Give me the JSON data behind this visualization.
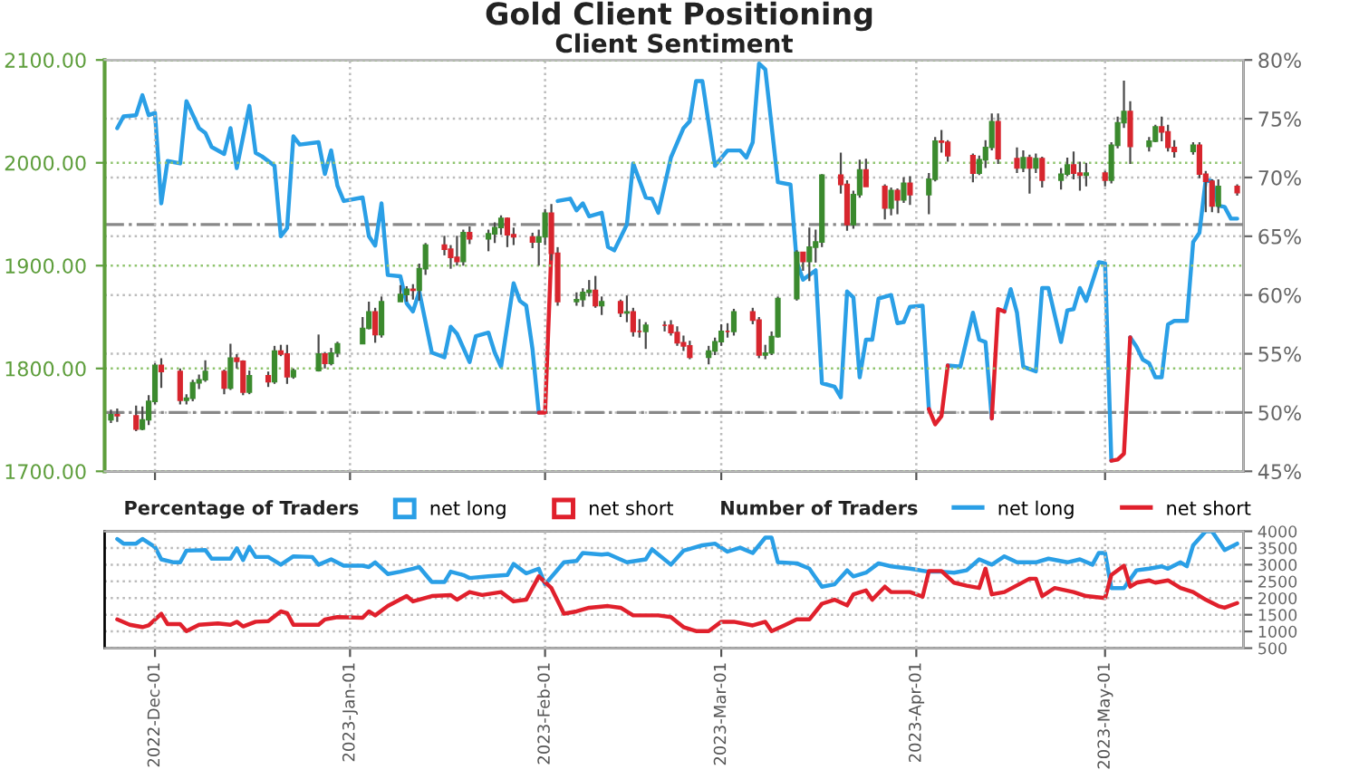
{
  "chart_data": [
    {
      "type": "candlestick",
      "title": "Gold Client Positioning",
      "subtitle": "Client Sentiment",
      "legend_title": "Percentage of Traders",
      "legend": "bottom left",
      "grid": true,
      "tick_labels": "y",
      "xlim": [
        "2022-11-23",
        "2023-05-23"
      ],
      "xticks": [
        {
          "value": "2022-12-01",
          "label": null
        },
        {
          "value": "2023-01-01",
          "label": null
        },
        {
          "value": "2023-02-01",
          "label": null
        },
        {
          "value": "2023-03-01",
          "label": null
        },
        {
          "value": "2023-04-01",
          "label": null
        },
        {
          "value": "2023-05-01",
          "label": null
        }
      ],
      "ylim": [
        1700,
        2100
      ],
      "yticks": [
        {
          "value": 1700,
          "label": "1700.00"
        },
        {
          "value": 1800,
          "label": "1800.00"
        },
        {
          "value": 1900,
          "label": "1900.00"
        },
        {
          "value": 2000,
          "label": "2000.00"
        },
        {
          "value": 2100,
          "label": "2100.00"
        }
      ],
      "y2lim": [
        45,
        80
      ],
      "y2ticks": [
        {
          "value": 45,
          "label": "45%"
        },
        {
          "value": 50,
          "label": "50%"
        },
        {
          "value": 55,
          "label": "55%"
        },
        {
          "value": 60,
          "label": "60%"
        },
        {
          "value": 65,
          "label": "65%"
        },
        {
          "value": 70,
          "label": "70%"
        },
        {
          "value": 75,
          "label": "75%"
        },
        {
          "value": 80,
          "label": "80%"
        }
      ],
      "ref_lines": [
        {
          "axis": "y2",
          "value": 50,
          "label": null,
          "color": "#888888",
          "line_style": "dashed"
        },
        {
          "axis": "y2",
          "value": 66,
          "label": null,
          "color": "#888888",
          "line_style": "dashed"
        }
      ],
      "x": [
        "2022-11-24",
        "2022-11-25",
        "2022-11-28",
        "2022-11-29",
        "2022-11-30",
        "2022-12-01",
        "2022-12-02",
        "2022-12-05",
        "2022-12-06",
        "2022-12-07",
        "2022-12-08",
        "2022-12-09",
        "2022-12-12",
        "2022-12-13",
        "2022-12-14",
        "2022-12-15",
        "2022-12-16",
        "2022-12-19",
        "2022-12-20",
        "2022-12-21",
        "2022-12-22",
        "2022-12-23",
        "2022-12-27",
        "2022-12-28",
        "2022-12-29",
        "2022-12-30",
        "2023-01-03",
        "2023-01-04",
        "2023-01-05",
        "2023-01-06",
        "2023-01-09",
        "2023-01-10",
        "2023-01-11",
        "2023-01-12",
        "2023-01-13",
        "2023-01-16",
        "2023-01-17",
        "2023-01-18",
        "2023-01-19",
        "2023-01-20",
        "2023-01-23",
        "2023-01-24",
        "2023-01-25",
        "2023-01-26",
        "2023-01-27",
        "2023-01-30",
        "2023-01-31",
        "2023-02-01",
        "2023-02-02",
        "2023-02-03",
        "2023-02-06",
        "2023-02-07",
        "2023-02-08",
        "2023-02-09",
        "2023-02-10",
        "2023-02-13",
        "2023-02-14",
        "2023-02-15",
        "2023-02-16",
        "2023-02-17",
        "2023-02-20",
        "2023-02-21",
        "2023-02-22",
        "2023-02-23",
        "2023-02-24",
        "2023-02-27",
        "2023-02-28",
        "2023-03-01",
        "2023-03-02",
        "2023-03-03",
        "2023-03-06",
        "2023-03-07",
        "2023-03-08",
        "2023-03-09",
        "2023-03-10",
        "2023-03-13",
        "2023-03-14",
        "2023-03-15",
        "2023-03-16",
        "2023-03-17",
        "2023-03-20",
        "2023-03-21",
        "2023-03-22",
        "2023-03-23",
        "2023-03-24",
        "2023-03-27",
        "2023-03-28",
        "2023-03-29",
        "2023-03-30",
        "2023-03-31",
        "2023-04-03",
        "2023-04-04",
        "2023-04-05",
        "2023-04-06",
        "2023-04-10",
        "2023-04-11",
        "2023-04-12",
        "2023-04-13",
        "2023-04-14",
        "2023-04-17",
        "2023-04-18",
        "2023-04-19",
        "2023-04-20",
        "2023-04-21",
        "2023-04-24",
        "2023-04-25",
        "2023-04-26",
        "2023-04-27",
        "2023-04-28",
        "2023-05-01",
        "2023-05-02",
        "2023-05-03",
        "2023-05-04",
        "2023-05-05",
        "2023-05-08",
        "2023-05-09",
        "2023-05-10",
        "2023-05-11",
        "2023-05-12",
        "2023-05-15",
        "2023-05-16",
        "2023-05-17",
        "2023-05-18",
        "2023-05-19",
        "2023-05-22"
      ],
      "ohlc": [
        [
          1750,
          1760,
          1747,
          1755
        ],
        [
          1755,
          1761,
          1748,
          1754
        ],
        [
          1754,
          1764,
          1739,
          1741
        ],
        [
          1741,
          1763,
          1740,
          1750
        ],
        [
          1750,
          1774,
          1745,
          1768
        ],
        [
          1768,
          1805,
          1765,
          1803
        ],
        [
          1803,
          1810,
          1781,
          1797
        ],
        [
          1797,
          1800,
          1765,
          1769
        ],
        [
          1769,
          1775,
          1765,
          1771
        ],
        [
          1771,
          1789,
          1768,
          1786
        ],
        [
          1786,
          1794,
          1780,
          1789
        ],
        [
          1789,
          1808,
          1787,
          1797
        ],
        [
          1797,
          1799,
          1775,
          1781
        ],
        [
          1781,
          1824,
          1779,
          1810
        ],
        [
          1810,
          1814,
          1800,
          1807
        ],
        [
          1807,
          1808,
          1774,
          1777
        ],
        [
          1777,
          1798,
          1775,
          1793
        ],
        [
          1793,
          1797,
          1782,
          1787
        ],
        [
          1787,
          1822,
          1785,
          1817
        ],
        [
          1817,
          1823,
          1812,
          1814
        ],
        [
          1814,
          1823,
          1785,
          1792
        ],
        [
          1792,
          1800,
          1790,
          1798
        ],
        [
          1798,
          1833,
          1797,
          1814
        ],
        [
          1814,
          1816,
          1800,
          1805
        ],
        [
          1805,
          1820,
          1803,
          1815
        ],
        [
          1815,
          1826,
          1811,
          1824
        ],
        [
          1824,
          1850,
          1824,
          1839
        ],
        [
          1839,
          1865,
          1838,
          1855
        ],
        [
          1855,
          1859,
          1825,
          1833
        ],
        [
          1833,
          1870,
          1830,
          1865
        ],
        [
          1865,
          1881,
          1865,
          1872
        ],
        [
          1872,
          1880,
          1865,
          1877
        ],
        [
          1877,
          1882,
          1867,
          1876
        ],
        [
          1876,
          1902,
          1866,
          1897
        ],
        [
          1897,
          1922,
          1891,
          1920
        ],
        [
          1920,
          1929,
          1910,
          1916
        ],
        [
          1916,
          1920,
          1897,
          1908
        ],
        [
          1908,
          1929,
          1900,
          1904
        ],
        [
          1904,
          1935,
          1900,
          1932
        ],
        [
          1932,
          1938,
          1921,
          1926
        ],
        [
          1926,
          1935,
          1914,
          1931
        ],
        [
          1931,
          1942,
          1922,
          1937
        ],
        [
          1937,
          1949,
          1930,
          1946
        ],
        [
          1946,
          1947,
          1918,
          1930
        ],
        [
          1930,
          1937,
          1920,
          1928
        ],
        [
          1928,
          1932,
          1917,
          1923
        ],
        [
          1923,
          1935,
          1900,
          1928
        ],
        [
          1928,
          1955,
          1920,
          1951
        ],
        [
          1951,
          1960,
          1905,
          1912
        ],
        [
          1912,
          1918,
          1861,
          1865
        ],
        [
          1865,
          1874,
          1861,
          1867
        ],
        [
          1867,
          1878,
          1860,
          1874
        ],
        [
          1874,
          1886,
          1870,
          1876
        ],
        [
          1876,
          1890,
          1859,
          1861
        ],
        [
          1861,
          1870,
          1852,
          1865
        ],
        [
          1865,
          1867,
          1850,
          1854
        ],
        [
          1854,
          1871,
          1845,
          1855
        ],
        [
          1855,
          1859,
          1831,
          1836
        ],
        [
          1836,
          1848,
          1830,
          1836
        ],
        [
          1836,
          1845,
          1819,
          1842
        ],
        [
          1842,
          1846,
          1836,
          1842
        ],
        [
          1842,
          1847,
          1832,
          1835
        ],
        [
          1835,
          1841,
          1822,
          1825
        ],
        [
          1825,
          1832,
          1817,
          1822
        ],
        [
          1822,
          1827,
          1809,
          1811
        ],
        [
          1811,
          1822,
          1804,
          1817
        ],
        [
          1817,
          1830,
          1813,
          1826
        ],
        [
          1826,
          1843,
          1822,
          1836
        ],
        [
          1836,
          1844,
          1830,
          1836
        ],
        [
          1836,
          1858,
          1832,
          1855
        ],
        [
          1855,
          1859,
          1843,
          1847
        ],
        [
          1847,
          1850,
          1810,
          1813
        ],
        [
          1813,
          1823,
          1809,
          1815
        ],
        [
          1815,
          1836,
          1813,
          1831
        ],
        [
          1831,
          1870,
          1830,
          1868
        ],
        [
          1868,
          1915,
          1866,
          1913
        ],
        [
          1913,
          1913,
          1895,
          1904
        ],
        [
          1904,
          1937,
          1885,
          1918
        ],
        [
          1918,
          1935,
          1903,
          1923
        ],
        [
          1923,
          1989,
          1918,
          1988
        ],
        [
          1988,
          2010,
          1970,
          1979
        ],
        [
          1979,
          1983,
          1934,
          1940
        ],
        [
          1940,
          1973,
          1936,
          1969
        ],
        [
          1969,
          2003,
          1966,
          1993
        ],
        [
          1993,
          2004,
          1977,
          1977
        ],
        [
          1977,
          1979,
          1945,
          1956
        ],
        [
          1956,
          1976,
          1949,
          1973
        ],
        [
          1973,
          1975,
          1950,
          1964
        ],
        [
          1964,
          1986,
          1961,
          1980
        ],
        [
          1980,
          1987,
          1959,
          1969
        ],
        [
          1969,
          1990,
          1950,
          1984
        ],
        [
          1984,
          2025,
          1982,
          2021
        ],
        [
          2021,
          2032,
          2010,
          2020
        ],
        [
          2020,
          2022,
          2001,
          2007
        ],
        [
          2007,
          2009,
          1981,
          1990
        ],
        [
          1990,
          2007,
          1988,
          2003
        ],
        [
          2003,
          2022,
          1995,
          2015
        ],
        [
          2015,
          2048,
          2012,
          2040
        ],
        [
          2040,
          2048,
          1999,
          2004
        ],
        [
          2004,
          2015,
          1990,
          1995
        ],
        [
          1995,
          2012,
          1991,
          2005
        ],
        [
          2005,
          2008,
          1970,
          1995
        ],
        [
          1995,
          2009,
          1990,
          2004
        ],
        [
          2004,
          2006,
          1976,
          1983
        ],
        [
          1983,
          1995,
          1974,
          1989
        ],
        [
          1989,
          2005,
          1987,
          1998
        ],
        [
          1998,
          2011,
          1984,
          1990
        ],
        [
          1990,
          2001,
          1973,
          1988
        ],
        [
          1988,
          2000,
          1977,
          1990
        ],
        [
          1990,
          1992,
          1977,
          1983
        ],
        [
          1983,
          2020,
          1980,
          2017
        ],
        [
          2017,
          2045,
          2014,
          2039
        ],
        [
          2039,
          2080,
          2034,
          2050
        ],
        [
          2050,
          2060,
          1999,
          2016
        ],
        [
          2016,
          2025,
          2011,
          2021
        ],
        [
          2021,
          2037,
          2020,
          2035
        ],
        [
          2035,
          2045,
          2021,
          2030
        ],
        [
          2030,
          2037,
          2011,
          2015
        ],
        [
          2015,
          2022,
          2005,
          2011
        ],
        [
          2011,
          2020,
          2008,
          2017
        ],
        [
          2017,
          2020,
          1985,
          1989
        ],
        [
          1989,
          1992,
          1952,
          1982
        ],
        [
          1982,
          1984,
          1952,
          1958
        ],
        [
          1958,
          1984,
          1951,
          1977
        ],
        [
          1977,
          1979,
          1968,
          1971
        ]
      ],
      "colors": [
        "#3b8a2e",
        "#d7262e",
        "#d7262e",
        "#3b8a2e",
        "#3b8a2e",
        "#3b8a2e",
        "#d7262e",
        "#d7262e",
        "#3b8a2e",
        "#3b8a2e",
        "#3b8a2e",
        "#3b8a2e",
        "#d7262e",
        "#3b8a2e",
        "#d7262e",
        "#d7262e",
        "#3b8a2e",
        "#d7262e",
        "#3b8a2e",
        "#d7262e",
        "#d7262e",
        "#3b8a2e",
        "#3b8a2e",
        "#d7262e",
        "#3b8a2e",
        "#3b8a2e",
        "#3b8a2e",
        "#3b8a2e",
        "#d7262e",
        "#3b8a2e",
        "#3b8a2e",
        "#3b8a2e",
        "#d7262e",
        "#3b8a2e",
        "#3b8a2e",
        "#d7262e",
        "#d7262e",
        "#d7262e",
        "#3b8a2e",
        "#d7262e",
        "#3b8a2e",
        "#3b8a2e",
        "#3b8a2e",
        "#d7262e",
        "#d7262e",
        "#d7262e",
        "#3b8a2e",
        "#3b8a2e",
        "#d7262e",
        "#d7262e",
        "#3b8a2e",
        "#3b8a2e",
        "#3b8a2e",
        "#d7262e",
        "#3b8a2e",
        "#d7262e",
        "#3b8a2e",
        "#d7262e",
        "#d7262e",
        "#3b8a2e",
        "#d7262e",
        "#d7262e",
        "#d7262e",
        "#d7262e",
        "#d7262e",
        "#3b8a2e",
        "#3b8a2e",
        "#3b8a2e",
        "#d7262e",
        "#3b8a2e",
        "#d7262e",
        "#d7262e",
        "#3b8a2e",
        "#3b8a2e",
        "#3b8a2e",
        "#3b8a2e",
        "#d7262e",
        "#3b8a2e",
        "#3b8a2e",
        "#3b8a2e",
        "#d7262e",
        "#d7262e",
        "#3b8a2e",
        "#3b8a2e",
        "#d7262e",
        "#d7262e",
        "#3b8a2e",
        "#d7262e",
        "#3b8a2e",
        "#d7262e",
        "#3b8a2e",
        "#3b8a2e",
        "#d7262e",
        "#d7262e",
        "#d7262e",
        "#3b8a2e",
        "#3b8a2e",
        "#3b8a2e",
        "#d7262e",
        "#d7262e",
        "#3b8a2e",
        "#d7262e",
        "#3b8a2e",
        "#d7262e",
        "#3b8a2e",
        "#3b8a2e",
        "#d7262e",
        "#d7262e",
        "#3b8a2e",
        "#d7262e",
        "#3b8a2e",
        "#3b8a2e",
        "#3b8a2e",
        "#d7262e",
        "#3b8a2e",
        "#3b8a2e",
        "#d7262e",
        "#d7262e",
        "#d7262e",
        "#3b8a2e",
        "#d7262e",
        "#d7262e",
        "#d7262e",
        "#3b8a2e",
        "#d7262e"
      ],
      "series": [
        {
          "name": "net long",
          "color": "#2a9fe6",
          "type": "line",
          "axis": "y2",
          "x": [
            "2022-11-25",
            "2022-11-26",
            "2022-11-28",
            "2022-11-29",
            "2022-11-30",
            "2022-12-01",
            "2022-12-02",
            "2022-12-03",
            "2022-12-05",
            "2022-12-06",
            "2022-12-08",
            "2022-12-09",
            "2022-12-10",
            "2022-12-12",
            "2022-12-13",
            "2022-12-14",
            "2022-12-16",
            "2022-12-17",
            "2022-12-18",
            "2022-12-20",
            "2022-12-21",
            "2022-12-22",
            "2022-12-23",
            "2022-12-24",
            "2022-12-27",
            "2022-12-28",
            "2022-12-29",
            "2022-12-30",
            "2022-12-31",
            "2023-01-03",
            "2023-01-04",
            "2023-01-05",
            "2023-01-06",
            "2023-01-07",
            "2023-01-09",
            "2023-01-10",
            "2023-01-11",
            "2023-01-12",
            "2023-01-14",
            "2023-01-16",
            "2023-01-17",
            "2023-01-18",
            "2023-01-20",
            "2023-01-21",
            "2023-01-23",
            "2023-01-24",
            "2023-01-25",
            "2023-01-27",
            "2023-01-28",
            "2023-01-29",
            "2023-01-30",
            "2023-01-31",
            "2023-02-01",
            "2023-02-03",
            "2023-02-05",
            "2023-02-06",
            "2023-02-07",
            "2023-02-08",
            "2023-02-10",
            "2023-02-11",
            "2023-02-12",
            "2023-02-14",
            "2023-02-15",
            "2023-02-17",
            "2023-02-18",
            "2023-02-19",
            "2023-02-21",
            "2023-02-23",
            "2023-02-24",
            "2023-02-25",
            "2023-02-26",
            "2023-02-28",
            "2023-03-02",
            "2023-03-04",
            "2023-03-05",
            "2023-03-06",
            "2023-03-07",
            "2023-03-08",
            "2023-03-10",
            "2023-03-12",
            "2023-03-13",
            "2023-03-14",
            "2023-03-16",
            "2023-03-17",
            "2023-03-19",
            "2023-03-20",
            "2023-03-21",
            "2023-03-22",
            "2023-03-23",
            "2023-03-24",
            "2023-03-25",
            "2023-03-26",
            "2023-03-28",
            "2023-03-29",
            "2023-03-30",
            "2023-03-31",
            "2023-04-02",
            "2023-04-03",
            "2023-04-04",
            "2023-04-06",
            "2023-04-08",
            "2023-04-10",
            "2023-04-11",
            "2023-04-12",
            "2023-04-13",
            "2023-04-14",
            "2023-04-15",
            "2023-04-16",
            "2023-04-17",
            "2023-04-18",
            "2023-04-20",
            "2023-04-21",
            "2023-04-22",
            "2023-04-24",
            "2023-04-25",
            "2023-04-26",
            "2023-04-27",
            "2023-04-28",
            "2023-04-30",
            "2023-05-01",
            "2023-05-02",
            "2023-05-03",
            "2023-05-05",
            "2023-05-06",
            "2023-05-07",
            "2023-05-08",
            "2023-05-09",
            "2023-05-10",
            "2023-05-11",
            "2023-05-12",
            "2023-05-14",
            "2023-05-15",
            "2023-05-16",
            "2023-05-17",
            "2023-05-18",
            "2023-05-19",
            "2023-05-20",
            "2023-05-21",
            "2023-05-22"
          ],
          "values": [
            74.2,
            75.2,
            75.3,
            77.0,
            75.3,
            75.5,
            67.8,
            71.4,
            71.2,
            76.5,
            74.2,
            73.8,
            72.6,
            72.0,
            74.2,
            70.8,
            76.1,
            72.1,
            71.8,
            71.0,
            65.0,
            65.7,
            73.5,
            72.8,
            73.0,
            70.3,
            72.3,
            69.3,
            68.0,
            68.3,
            65.0,
            64.2,
            67.8,
            61.7,
            61.6,
            59.3,
            58.6,
            60.3,
            55.1,
            54.7,
            57.3,
            56.7,
            54.3,
            56.5,
            56.8,
            55.1,
            53.9,
            61.0,
            59.5,
            59.1,
            55.4,
            50.0,
            null,
            68.0,
            68.2,
            67.2,
            67.8,
            66.7,
            67.0,
            64.1,
            63.8,
            66.0,
            71.2,
            68.3,
            68.2,
            67.0,
            71.7,
            74.2,
            74.8,
            78.2,
            78.2,
            71.0,
            72.3,
            72.3,
            71.7,
            73.0,
            79.7,
            79.2,
            69.6,
            69.4,
            62.8,
            61.3,
            62.1,
            52.5,
            52.2,
            51.3,
            60.3,
            59.8,
            53.0,
            56.2,
            56.2,
            59.7,
            60.0,
            57.6,
            57.7,
            59.0,
            59.1,
            50.3,
            null,
            54.0,
            53.9,
            58.5,
            56.2,
            56.0,
            49.5,
            null,
            58.6,
            60.5,
            58.5,
            53.9,
            53.5,
            60.6,
            60.6,
            56.0,
            58.7,
            58.8,
            60.6,
            59.5,
            62.8,
            62.7,
            45.9,
            null,
            56.4,
            55.6,
            54.5,
            54.2,
            53.0,
            53.0,
            57.5,
            57.8,
            57.8,
            64.5,
            65.3,
            69.8,
            69.7,
            67.6,
            67.5,
            66.5,
            66.5
          ]
        },
        {
          "name": "net short",
          "color": "#e0202c",
          "type": "line",
          "axis": "y2",
          "x": [
            "2023-01-31",
            "2023-02-01",
            "2023-02-02",
            "2023-02-03",
            "2023-04-03",
            "2023-04-04",
            "2023-04-05",
            "2023-04-06",
            "2023-04-07",
            "2023-04-13",
            "2023-04-14",
            "2023-04-15",
            "2023-04-16",
            "2023-05-02",
            "2023-05-03",
            "2023-05-04",
            "2023-05-05"
          ],
          "values": [
            50.0,
            50.0,
            63.8,
            null,
            50.3,
            49.0,
            49.7,
            54.0,
            null,
            49.5,
            58.8,
            58.6,
            null,
            45.9,
            46.0,
            46.5,
            56.4
          ]
        }
      ]
    },
    {
      "type": "line",
      "legend_title": "Number of Traders",
      "legend": "top right",
      "grid": true,
      "xlim": [
        "2022-11-23",
        "2023-05-23"
      ],
      "xticks": [
        {
          "value": "2022-12-01",
          "label": "2022-Dec-01"
        },
        {
          "value": "2023-01-01",
          "label": "2023-Jan-01"
        },
        {
          "value": "2023-02-01",
          "label": "2023-Feb-01"
        },
        {
          "value": "2023-03-01",
          "label": "2023-Mar-01"
        },
        {
          "value": "2023-04-01",
          "label": "2023-Apr-01"
        },
        {
          "value": "2023-05-01",
          "label": "2023-May-01"
        }
      ],
      "y2lim": [
        500,
        4000
      ],
      "y2ticks": [
        500,
        1000,
        1500,
        2000,
        2500,
        3000,
        3500,
        4000
      ],
      "series": [
        {
          "name": "net long",
          "color": "#2a9fe6",
          "axis": "y2",
          "x": [
            "2022-11-25",
            "2022-11-26",
            "2022-11-28",
            "2022-11-29",
            "2022-12-01",
            "2022-12-02",
            "2022-12-04",
            "2022-12-05",
            "2022-12-06",
            "2022-12-09",
            "2022-12-10",
            "2022-12-13",
            "2022-12-14",
            "2022-12-15",
            "2022-12-16",
            "2022-12-17",
            "2022-12-19",
            "2022-12-21",
            "2022-12-23",
            "2022-12-26",
            "2022-12-27",
            "2022-12-29",
            "2022-12-31",
            "2023-01-03",
            "2023-01-04",
            "2023-01-05",
            "2023-01-07",
            "2023-01-09",
            "2023-01-11",
            "2023-01-12",
            "2023-01-14",
            "2023-01-16",
            "2023-01-17",
            "2023-01-19",
            "2023-01-20",
            "2023-01-23",
            "2023-01-26",
            "2023-01-27",
            "2023-01-29",
            "2023-01-31",
            "2023-02-01",
            "2023-02-04",
            "2023-02-06",
            "2023-02-07",
            "2023-02-10",
            "2023-02-11",
            "2023-02-14",
            "2023-02-17",
            "2023-02-18",
            "2023-02-21",
            "2023-02-23",
            "2023-02-26",
            "2023-02-28",
            "2023-03-02",
            "2023-03-04",
            "2023-03-06",
            "2023-03-08",
            "2023-03-09",
            "2023-03-10",
            "2023-03-13",
            "2023-03-15",
            "2023-03-17",
            "2023-03-19",
            "2023-03-21",
            "2023-03-22",
            "2023-03-24",
            "2023-03-26",
            "2023-03-28",
            "2023-03-31",
            "2023-04-03",
            "2023-04-05",
            "2023-04-07",
            "2023-04-09",
            "2023-04-11",
            "2023-04-13",
            "2023-04-15",
            "2023-04-17",
            "2023-04-20",
            "2023-04-22",
            "2023-04-25",
            "2023-04-27",
            "2023-04-29",
            "2023-04-30",
            "2023-05-01",
            "2023-05-02",
            "2023-05-04",
            "2023-05-06",
            "2023-05-08",
            "2023-05-10",
            "2023-05-11",
            "2023-05-13",
            "2023-05-14",
            "2023-05-15",
            "2023-05-17",
            "2023-05-18",
            "2023-05-20",
            "2023-05-22"
          ],
          "values": [
            3770,
            3630,
            3630,
            3770,
            3530,
            3160,
            3070,
            3070,
            3420,
            3440,
            3180,
            3180,
            3490,
            3140,
            3530,
            3230,
            3230,
            3000,
            3250,
            3230,
            3000,
            3160,
            2970,
            2970,
            2930,
            3070,
            2720,
            2790,
            2880,
            2930,
            2480,
            2480,
            2790,
            2690,
            2600,
            2650,
            2690,
            3020,
            2740,
            2880,
            2410,
            3070,
            3110,
            3350,
            3300,
            3320,
            3070,
            3160,
            3460,
            3000,
            3420,
            3580,
            3630,
            3390,
            3510,
            3350,
            3810,
            3810,
            3070,
            3040,
            2880,
            2340,
            2410,
            2830,
            2650,
            2760,
            3040,
            2950,
            2880,
            2790,
            2790,
            2760,
            2830,
            3160,
            3000,
            3250,
            3070,
            3070,
            3180,
            3070,
            3160,
            3000,
            3350,
            3350,
            2300,
            2300,
            2830,
            2880,
            2950,
            2880,
            3070,
            2950,
            3580,
            4000,
            4000,
            3440,
            3630
          ]
        },
        {
          "name": "net short",
          "color": "#e0202c",
          "axis": "y2",
          "x": [
            "2022-11-25",
            "2022-11-27",
            "2022-11-29",
            "2022-11-30",
            "2022-12-02",
            "2022-12-03",
            "2022-12-05",
            "2022-12-06",
            "2022-12-08",
            "2022-12-11",
            "2022-12-13",
            "2022-12-14",
            "2022-12-15",
            "2022-12-17",
            "2022-12-19",
            "2022-12-21",
            "2022-12-22",
            "2022-12-23",
            "2022-12-27",
            "2022-12-28",
            "2022-12-30",
            "2023-01-03",
            "2023-01-04",
            "2023-01-05",
            "2023-01-07",
            "2023-01-10",
            "2023-01-11",
            "2023-01-14",
            "2023-01-17",
            "2023-01-18",
            "2023-01-20",
            "2023-01-22",
            "2023-01-25",
            "2023-01-27",
            "2023-01-29",
            "2023-01-31",
            "2023-02-02",
            "2023-02-04",
            "2023-02-06",
            "2023-02-08",
            "2023-02-11",
            "2023-02-13",
            "2023-02-15",
            "2023-02-19",
            "2023-02-21",
            "2023-02-23",
            "2023-02-25",
            "2023-02-27",
            "2023-03-01",
            "2023-03-03",
            "2023-03-06",
            "2023-03-08",
            "2023-03-09",
            "2023-03-11",
            "2023-03-13",
            "2023-03-15",
            "2023-03-17",
            "2023-03-19",
            "2023-03-21",
            "2023-03-22",
            "2023-03-24",
            "2023-03-25",
            "2023-03-27",
            "2023-03-28",
            "2023-03-31",
            "2023-04-02",
            "2023-04-03",
            "2023-04-05",
            "2023-04-07",
            "2023-04-09",
            "2023-04-11",
            "2023-04-12",
            "2023-04-13",
            "2023-04-15",
            "2023-04-19",
            "2023-04-20",
            "2023-04-21",
            "2023-04-23",
            "2023-04-26",
            "2023-04-28",
            "2023-05-01",
            "2023-05-02",
            "2023-05-04",
            "2023-05-05",
            "2023-05-06",
            "2023-05-08",
            "2023-05-09",
            "2023-05-11",
            "2023-05-13",
            "2023-05-15",
            "2023-05-17",
            "2023-05-19",
            "2023-05-20",
            "2023-05-22"
          ],
          "values": [
            1360,
            1200,
            1130,
            1180,
            1530,
            1220,
            1220,
            1010,
            1200,
            1240,
            1200,
            1290,
            1150,
            1290,
            1310,
            1600,
            1550,
            1200,
            1200,
            1360,
            1430,
            1410,
            1600,
            1480,
            1760,
            2060,
            1900,
            2060,
            2090,
            1950,
            2180,
            2090,
            2180,
            1900,
            1950,
            2650,
            2300,
            1530,
            1600,
            1710,
            1760,
            1710,
            1480,
            1480,
            1430,
            1130,
            1010,
            1010,
            1290,
            1290,
            1180,
            1290,
            1010,
            1180,
            1360,
            1360,
            1830,
            1950,
            1780,
            2110,
            2230,
            1950,
            2340,
            2180,
            2180,
            2040,
            2810,
            2810,
            2460,
            2370,
            2300,
            2880,
            2110,
            2180,
            2580,
            2580,
            2060,
            2300,
            2180,
            2060,
            2000,
            2690,
            2970,
            2340,
            2460,
            2530,
            2460,
            2530,
            2300,
            2180,
            1950,
            1760,
            1710,
            1850
          ]
        }
      ]
    }
  ]
}
